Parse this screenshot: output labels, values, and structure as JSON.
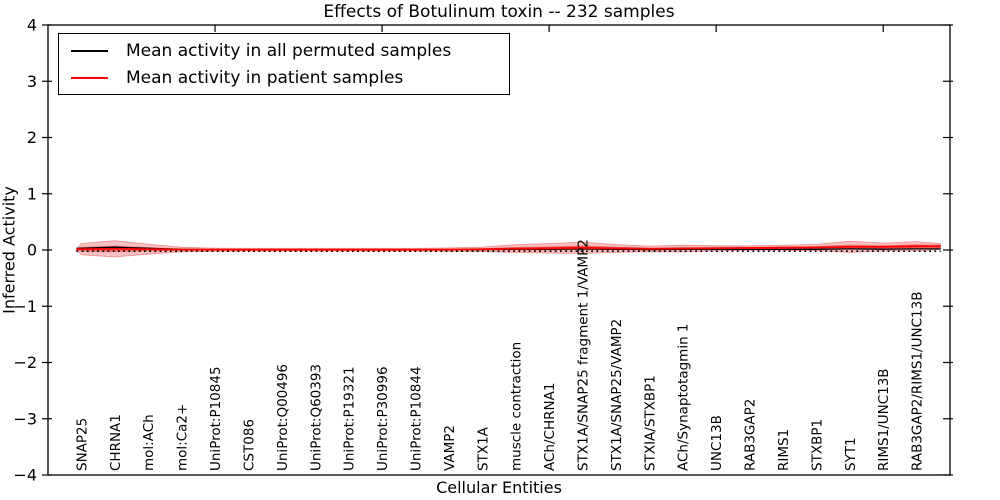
{
  "figure": {
    "title": "Effects of Botulinum toxin -- 232 samples",
    "xlabel": "Cellular Entities",
    "ylabel": "Inferred Activity"
  },
  "legend": {
    "items": [
      {
        "label": "Mean activity in all permuted samples",
        "color": "#000000"
      },
      {
        "label": "Mean activity in patient samples",
        "color": "#ff0000"
      }
    ]
  },
  "chart_data": {
    "type": "violin",
    "title": "Effects of Botulinum toxin -- 232 samples",
    "xlabel": "Cellular Entities",
    "ylabel": "Inferred Activity",
    "xlim": [
      0,
      27
    ],
    "ylim": [
      -4,
      4
    ],
    "grid": false,
    "legend_position": "upper left",
    "yticks": [
      4,
      3,
      2,
      1,
      0,
      -1,
      -2,
      -3,
      -4
    ],
    "ytick_labels": [
      "4",
      "3",
      "2",
      "1",
      "0",
      "−1",
      "−2",
      "−3",
      "−4"
    ],
    "top_xticks": [
      5,
      10,
      15,
      20,
      25
    ],
    "categories": [
      "SNAP25",
      "CHRNA1",
      "mol:ACh",
      "mol:Ca2+",
      "UniProt:P10845",
      "CST086",
      "UniProt:Q00496",
      "UniProt:Q60393",
      "UniProt:P19321",
      "UniProt:P30996",
      "UniProt:P10844",
      "VAMP2",
      "STX1A",
      "muscle contraction",
      "ACh/CHRNA1",
      "STX1A/SNAP25 fragment 1/VAMP2",
      "STX1A/SNAP25/VAMP2",
      "STXIA/STXBP1",
      "ACh/Synaptotagmin 1",
      "UNC13B",
      "RAB3GAP2",
      "RIMS1",
      "STXBP1",
      "SYT1",
      "RIMS1/UNC13B",
      "RAB3GAP2/RIMS1/UNC13B"
    ],
    "series": [
      {
        "name": "Mean activity in all permuted samples",
        "color": "#000000",
        "style": "solid",
        "values": [
          0.03,
          0.05,
          0.03,
          0.01,
          0.005,
          0.005,
          0.005,
          0.005,
          0.005,
          0.005,
          0.005,
          0.005,
          0.008,
          0.015,
          0.015,
          0.02,
          0.012,
          0.008,
          0.01,
          0.01,
          0.01,
          0.01,
          0.012,
          0.02,
          0.015,
          0.02
        ]
      },
      {
        "name": "Mean activity in patient samples",
        "color": "#ff0000",
        "style": "solid",
        "values": [
          0.015,
          0.02,
          0.015,
          0.008,
          0.005,
          0.005,
          0.005,
          0.005,
          0.005,
          0.005,
          0.005,
          0.008,
          0.012,
          0.025,
          0.03,
          0.04,
          0.028,
          0.02,
          0.025,
          0.03,
          0.035,
          0.04,
          0.045,
          0.055,
          0.055,
          0.065
        ]
      }
    ],
    "zero_reference_line": {
      "value": 0,
      "color": "#000000",
      "style": "dotted"
    },
    "violin": {
      "fill": "#e41a1c",
      "edge": "#e05050",
      "outer_opacity": 0.28,
      "inner_opacity": 0.5,
      "outer_halfwidths": [
        0.1,
        0.145,
        0.09,
        0.04,
        0.028,
        0.025,
        0.025,
        0.025,
        0.025,
        0.025,
        0.025,
        0.03,
        0.04,
        0.07,
        0.085,
        0.1,
        0.07,
        0.05,
        0.06,
        0.045,
        0.04,
        0.045,
        0.055,
        0.1,
        0.07,
        0.085
      ],
      "inner_halfwidths": [
        0.04,
        0.055,
        0.035,
        0.018,
        0.014,
        0.013,
        0.013,
        0.013,
        0.013,
        0.013,
        0.013,
        0.015,
        0.018,
        0.028,
        0.033,
        0.04,
        0.028,
        0.022,
        0.026,
        0.02,
        0.018,
        0.02,
        0.024,
        0.04,
        0.028,
        0.034
      ],
      "start": {
        "x": 0.85,
        "mean": 0.01
      },
      "end": {
        "x": 26.72,
        "mean": 0.06
      }
    }
  }
}
